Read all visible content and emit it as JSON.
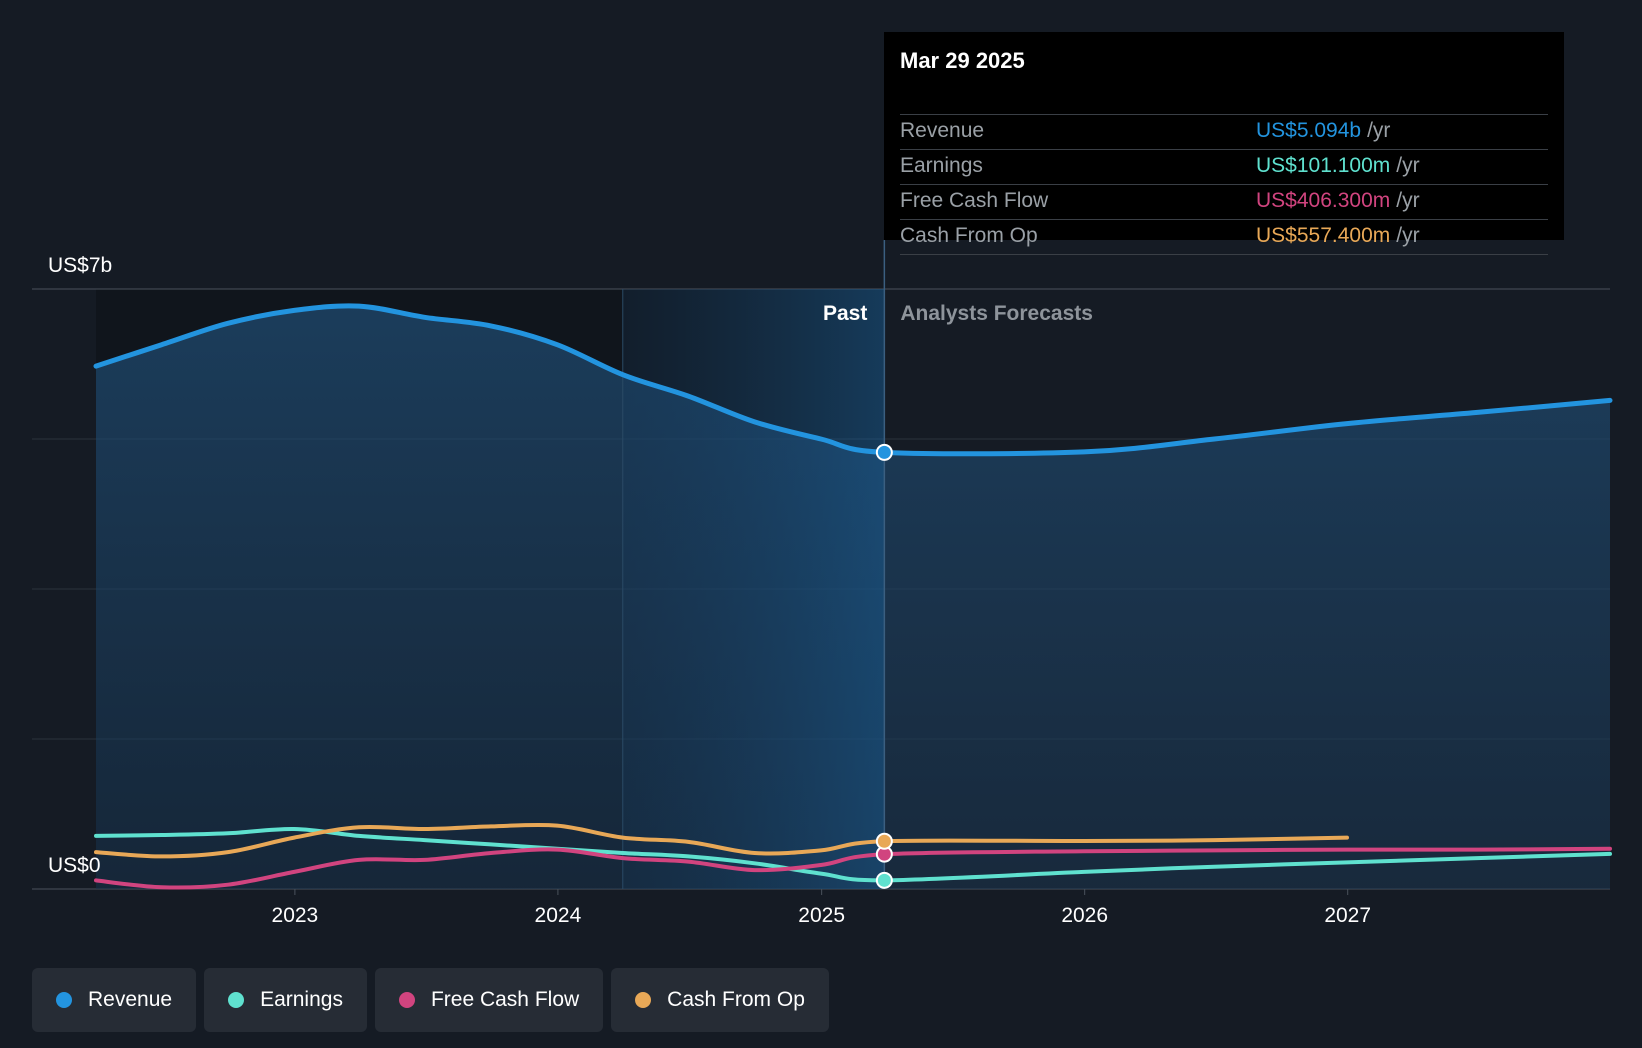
{
  "chart_data": {
    "type": "line",
    "y_top_label": "US$7b",
    "y_bottom_label": "US$0",
    "ylim": [
      0,
      7
    ],
    "y_unit": "US$ billions",
    "xlim": [
      "2022-03-31",
      "2027-12-31"
    ],
    "x_ticks": [
      {
        "label": "2023",
        "date": "2023-01-01"
      },
      {
        "label": "2024",
        "date": "2024-01-01"
      },
      {
        "label": "2025",
        "date": "2025-01-01"
      },
      {
        "label": "2026",
        "date": "2026-01-01"
      },
      {
        "label": "2027",
        "date": "2027-01-01"
      }
    ],
    "past_label": "Past",
    "forecast_label": "Analysts Forecasts",
    "past_end_date": "2025-03-29",
    "shaded_start_date": "2024-03-31",
    "grid": true,
    "series": [
      {
        "name": "Revenue",
        "color": "#2394df",
        "area": true,
        "points": [
          [
            "2022-03-31",
            6.1
          ],
          [
            "2022-06-30",
            6.35
          ],
          [
            "2022-09-30",
            6.6
          ],
          [
            "2022-12-31",
            6.75
          ],
          [
            "2023-03-31",
            6.8
          ],
          [
            "2023-06-30",
            6.67
          ],
          [
            "2023-09-30",
            6.57
          ],
          [
            "2023-12-31",
            6.35
          ],
          [
            "2024-03-31",
            6.0
          ],
          [
            "2024-06-30",
            5.75
          ],
          [
            "2024-09-30",
            5.45
          ],
          [
            "2024-12-31",
            5.25
          ],
          [
            "2025-03-29",
            5.094
          ],
          [
            "2025-12-31",
            5.1
          ],
          [
            "2026-06-30",
            5.25
          ],
          [
            "2026-12-31",
            5.43
          ],
          [
            "2027-06-30",
            5.56
          ],
          [
            "2027-12-31",
            5.7
          ]
        ]
      },
      {
        "name": "Earnings",
        "color": "#5fe1cf",
        "area": false,
        "points": [
          [
            "2022-03-31",
            0.62
          ],
          [
            "2022-06-30",
            0.63
          ],
          [
            "2022-09-30",
            0.65
          ],
          [
            "2022-12-31",
            0.7
          ],
          [
            "2023-03-31",
            0.62
          ],
          [
            "2023-06-30",
            0.57
          ],
          [
            "2023-09-30",
            0.52
          ],
          [
            "2023-12-31",
            0.47
          ],
          [
            "2024-03-31",
            0.42
          ],
          [
            "2024-06-30",
            0.38
          ],
          [
            "2024-09-30",
            0.3
          ],
          [
            "2024-12-31",
            0.18
          ],
          [
            "2025-03-29",
            0.1011
          ],
          [
            "2025-12-31",
            0.2
          ],
          [
            "2026-06-30",
            0.26
          ],
          [
            "2026-12-31",
            0.31
          ],
          [
            "2027-06-30",
            0.36
          ],
          [
            "2027-12-31",
            0.41
          ]
        ]
      },
      {
        "name": "Free Cash Flow",
        "color": "#d1447f",
        "area": false,
        "points": [
          [
            "2022-03-31",
            0.1
          ],
          [
            "2022-06-30",
            0.02
          ],
          [
            "2022-09-30",
            0.05
          ],
          [
            "2022-12-31",
            0.2
          ],
          [
            "2023-03-31",
            0.34
          ],
          [
            "2023-06-30",
            0.34
          ],
          [
            "2023-09-30",
            0.42
          ],
          [
            "2023-12-31",
            0.46
          ],
          [
            "2024-03-31",
            0.36
          ],
          [
            "2024-06-30",
            0.32
          ],
          [
            "2024-09-30",
            0.22
          ],
          [
            "2024-12-31",
            0.28
          ],
          [
            "2025-03-29",
            0.4063
          ],
          [
            "2025-12-31",
            0.44
          ],
          [
            "2026-06-30",
            0.45
          ],
          [
            "2026-12-31",
            0.46
          ],
          [
            "2027-06-30",
            0.46
          ],
          [
            "2027-12-31",
            0.47
          ]
        ]
      },
      {
        "name": "Cash From Op",
        "color": "#e8a857",
        "area": false,
        "points": [
          [
            "2022-03-31",
            0.43
          ],
          [
            "2022-06-30",
            0.38
          ],
          [
            "2022-09-30",
            0.43
          ],
          [
            "2022-12-31",
            0.6
          ],
          [
            "2023-03-31",
            0.72
          ],
          [
            "2023-06-30",
            0.7
          ],
          [
            "2023-09-30",
            0.73
          ],
          [
            "2023-12-31",
            0.74
          ],
          [
            "2024-03-31",
            0.6
          ],
          [
            "2024-06-30",
            0.55
          ],
          [
            "2024-09-30",
            0.42
          ],
          [
            "2024-12-31",
            0.45
          ],
          [
            "2025-03-29",
            0.5574
          ],
          [
            "2025-12-31",
            0.56
          ],
          [
            "2026-06-30",
            0.57
          ],
          [
            "2026-12-31",
            0.6
          ]
        ]
      }
    ]
  },
  "tooltip": {
    "date": "Mar 29 2025",
    "unit": "/yr",
    "rows": [
      {
        "label": "Revenue",
        "value": "US$5.094b",
        "color": "#2394df"
      },
      {
        "label": "Earnings",
        "value": "US$101.100m",
        "color": "#5fe1cf"
      },
      {
        "label": "Free Cash Flow",
        "value": "US$406.300m",
        "color": "#d1447f"
      },
      {
        "label": "Cash From Op",
        "value": "US$557.400m",
        "color": "#e8a857"
      }
    ]
  },
  "legend": [
    {
      "label": "Revenue",
      "color": "#2394df"
    },
    {
      "label": "Earnings",
      "color": "#5fe1cf"
    },
    {
      "label": "Free Cash Flow",
      "color": "#d1447f"
    },
    {
      "label": "Cash From Op",
      "color": "#e8a857"
    }
  ]
}
